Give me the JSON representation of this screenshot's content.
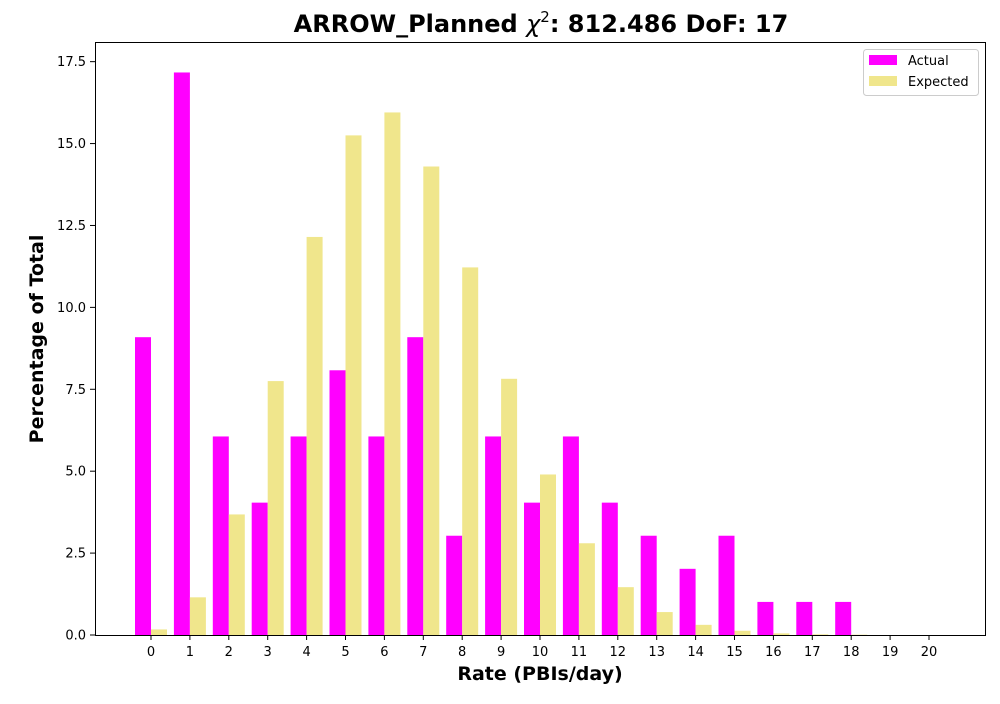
{
  "chart_data": {
    "type": "bar",
    "title_prefix": "ARROW_Planned",
    "title_chi": "χ",
    "title_exp": "2",
    "title_suffix": ": 812.486 DoF: 17",
    "xlabel": "Rate (PBIs/day)",
    "ylabel": "Percentage of Total",
    "categories": [
      "0",
      "1",
      "2",
      "3",
      "4",
      "5",
      "6",
      "7",
      "8",
      "9",
      "10",
      "11",
      "12",
      "13",
      "14",
      "15",
      "16",
      "17",
      "18",
      "19",
      "20"
    ],
    "ylim": [
      0,
      18.1
    ],
    "yticks": [
      "0.0",
      "2.5",
      "5.0",
      "7.5",
      "10.0",
      "12.5",
      "15.0",
      "17.5"
    ],
    "ytick_values": [
      0,
      2.5,
      5.0,
      7.5,
      10.0,
      12.5,
      15.0,
      17.5
    ],
    "grid": false,
    "legend_position": "top-right",
    "series": [
      {
        "name": "Actual",
        "color": "#ff00ff",
        "values": [
          9.09,
          17.17,
          6.06,
          4.04,
          6.06,
          8.08,
          6.06,
          9.09,
          3.03,
          6.06,
          4.04,
          6.06,
          4.04,
          3.03,
          2.02,
          3.03,
          1.01,
          1.01,
          1.01,
          0,
          0
        ]
      },
      {
        "name": "Expected",
        "color": "#f0e68c",
        "values": [
          0.17,
          1.15,
          3.68,
          7.75,
          12.15,
          15.25,
          15.95,
          14.3,
          11.22,
          7.82,
          4.9,
          2.8,
          1.46,
          0.7,
          0.31,
          0.13,
          0.05,
          0.02,
          0.01,
          0.0,
          0.0
        ]
      }
    ]
  }
}
